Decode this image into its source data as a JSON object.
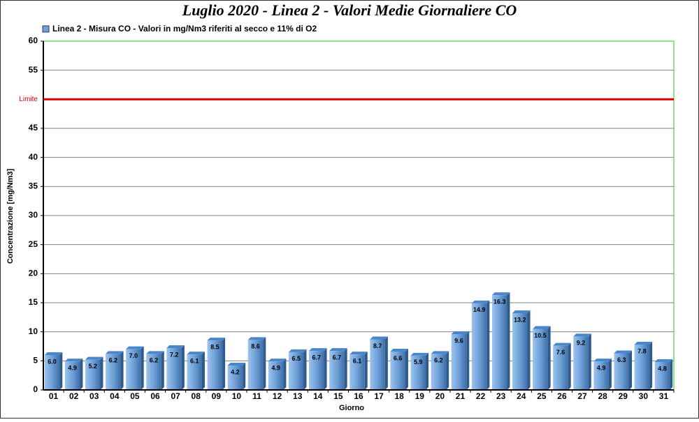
{
  "chart_data": {
    "type": "bar",
    "title": "Luglio 2020 - Linea 2 - Valori Medie Giornaliere CO",
    "x_label": "Giorno",
    "y_label": "Concentrazione [mg/Nm3]",
    "categories": [
      "01",
      "02",
      "03",
      "04",
      "05",
      "06",
      "07",
      "08",
      "09",
      "10",
      "11",
      "12",
      "13",
      "14",
      "15",
      "16",
      "17",
      "18",
      "19",
      "20",
      "21",
      "22",
      "23",
      "24",
      "25",
      "26",
      "27",
      "28",
      "29",
      "30",
      "31"
    ],
    "series": [
      {
        "name": "Linea 2 - Misura CO - Valori in mg/Nm3 riferiti al secco e 11% di O2",
        "color": "#6fa0d8",
        "values": [
          6.0,
          4.9,
          5.2,
          6.2,
          7.0,
          6.2,
          7.2,
          6.1,
          8.5,
          4.2,
          8.6,
          4.9,
          6.5,
          6.7,
          6.7,
          6.1,
          8.7,
          6.6,
          5.9,
          6.2,
          9.6,
          14.9,
          16.3,
          13.2,
          10.5,
          7.6,
          9.2,
          4.9,
          6.3,
          7.8,
          4.8
        ],
        "value_labels": [
          "6.0",
          "4.9",
          "5.2",
          "6.2",
          "7.0",
          "6.2",
          "7.2",
          "6.1",
          "8.5",
          "4.2",
          "8.6",
          "4.9",
          "6.5",
          "6.7",
          "6.7",
          "6.1",
          "8.7",
          "6.6",
          "5.9",
          "6.2",
          "9.6",
          "14.9",
          "16.3",
          "13.2",
          "10.5",
          "7.6",
          "9.2",
          "4.9",
          "6.3",
          "7.8",
          "4.8"
        ]
      }
    ],
    "ylim": [
      0,
      60
    ],
    "yticks": [
      0,
      5,
      10,
      15,
      20,
      25,
      30,
      35,
      40,
      45,
      55,
      60
    ],
    "reference_line": {
      "value": 50,
      "label": "Limite",
      "color": "#e00000"
    },
    "grid": true
  }
}
